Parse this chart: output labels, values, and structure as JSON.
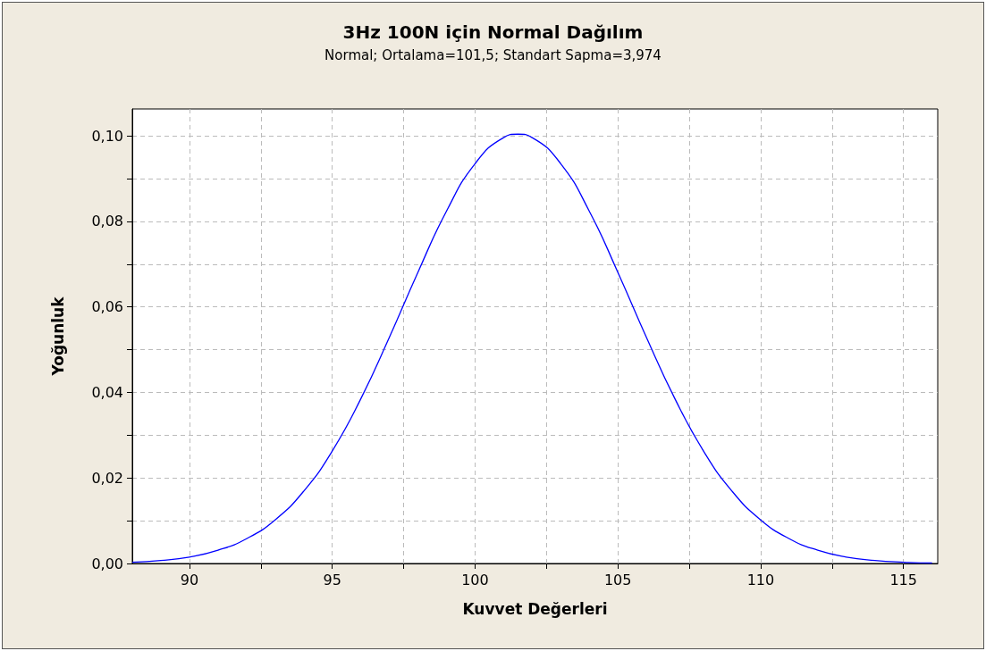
{
  "chart_data": {
    "type": "line",
    "title": "3Hz 100N için Normal Dağılım",
    "subtitle": "Normal; Ortalama=101,5; Standart Sapma=3,974",
    "xlabel": "Kuvvet Değerleri",
    "ylabel": "Yoğunluk",
    "x": [
      88,
      89,
      90,
      91,
      92,
      93,
      94,
      95,
      96,
      97,
      98,
      99,
      100,
      101,
      101.5,
      102,
      103,
      104,
      105,
      106,
      107,
      108,
      109,
      110,
      111,
      112,
      113,
      114,
      115,
      116
    ],
    "series": [
      {
        "color": "#0000ff",
        "values": [
          0.0003,
          0.0007,
          0.0015,
          0.0031,
          0.0058,
          0.0102,
          0.0169,
          0.0263,
          0.0385,
          0.0529,
          0.0681,
          0.0824,
          0.0935,
          0.0996,
          0.1004,
          0.0996,
          0.0935,
          0.0824,
          0.0681,
          0.0529,
          0.0385,
          0.0263,
          0.0169,
          0.0102,
          0.0058,
          0.0031,
          0.0015,
          0.0007,
          0.0003,
          0.0001
        ]
      }
    ],
    "xlim": [
      88,
      116.2
    ],
    "ylim": [
      0,
      0.1063
    ],
    "xticks": [
      90,
      {
        "value": 92.5,
        "label": null
      },
      95,
      {
        "value": 97.5,
        "label": null
      },
      100,
      {
        "value": 102.5,
        "label": null
      },
      105,
      {
        "value": 107.5,
        "label": null
      },
      110,
      {
        "value": 112.5,
        "label": null
      },
      115
    ],
    "yticks": [
      {
        "value": 0,
        "label": "0,00"
      },
      {
        "value": 0.01,
        "label": null
      },
      {
        "value": 0.02,
        "label": "0,02"
      },
      {
        "value": 0.03,
        "label": null
      },
      {
        "value": 0.04,
        "label": "0,04"
      },
      {
        "value": 0.05,
        "label": null
      },
      {
        "value": 0.06,
        "label": "0,06"
      },
      {
        "value": 0.07,
        "label": null
      },
      {
        "value": 0.08,
        "label": "0,08"
      },
      {
        "value": 0.09,
        "label": null
      },
      {
        "value": 0.1,
        "label": "0,10"
      }
    ],
    "grid": true,
    "marker": "none",
    "line_style": "solid"
  }
}
